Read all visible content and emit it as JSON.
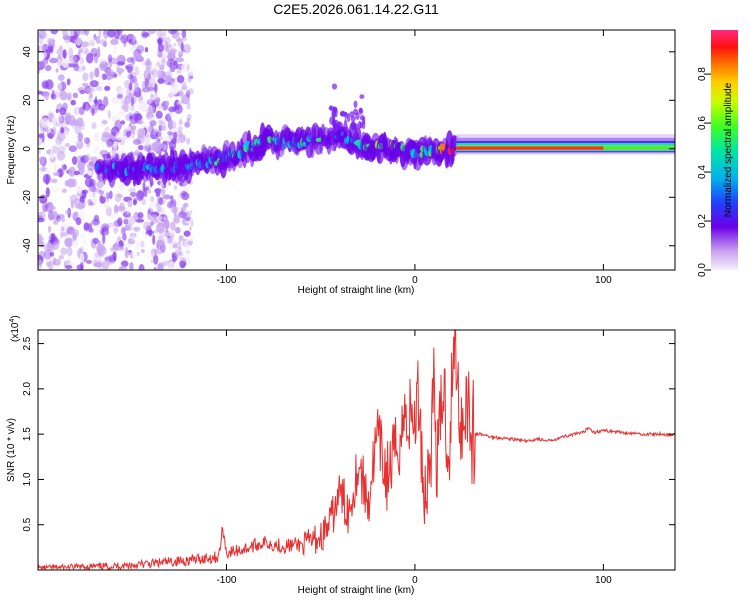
{
  "title": "C2E5.2026.061.14.22.G11",
  "colors": {
    "spectral_scale": [
      "#f4ecfa",
      "#c9a8f0",
      "#8a3ff0",
      "#6a00e8",
      "#3060ff",
      "#00c8e8",
      "#3ce870",
      "#9aff00",
      "#ffe000",
      "#ff8000",
      "#ff2000",
      "#ff1a6a"
    ],
    "snr_line": "#e83030"
  },
  "chart_data": [
    {
      "type": "heatmap",
      "name": "spectrogram",
      "title": "C2E5.2026.061.14.22.G11",
      "xlabel": "Height of straight line (km)",
      "ylabel": "Frequency (Hz)",
      "xlim": [
        -200,
        138
      ],
      "ylim": [
        -50,
        49
      ],
      "xticks": [
        -100,
        0,
        100
      ],
      "xtick_labels": [
        "-100",
        "0",
        "100"
      ],
      "yticks": [
        -40,
        -20,
        0,
        20,
        40
      ],
      "ytick_labels": [
        "-40",
        "-20",
        "0",
        "20",
        "40"
      ],
      "colorbar": {
        "label": "Normalized spectral amplitude",
        "range": [
          0.0,
          0.98
        ],
        "ticks": [
          0.0,
          0.2,
          0.4,
          0.6,
          0.8
        ],
        "tick_labels": [
          "0.0",
          "0.2",
          "0.4",
          "0.6",
          "0.8"
        ]
      },
      "ridge": {
        "x": [
          -168,
          -150,
          -130,
          -110,
          -95,
          -80,
          -60,
          -45,
          -38,
          -30,
          -20,
          -10,
          0,
          10,
          22,
          40,
          60,
          80,
          100,
          120,
          138
        ],
        "freq": [
          -9,
          -8,
          -8,
          -6,
          -2,
          3,
          3,
          4,
          5,
          2,
          1,
          0,
          -2,
          -1,
          0,
          0,
          0,
          0,
          0,
          0,
          0
        ],
        "amplitude": [
          0.35,
          0.35,
          0.3,
          0.35,
          0.45,
          0.5,
          0.4,
          0.45,
          0.4,
          0.45,
          0.5,
          0.45,
          0.5,
          0.5,
          0.95,
          0.97,
          0.97,
          0.9,
          0.88,
          0.5,
          0.45
        ]
      }
    },
    {
      "type": "line",
      "name": "snr",
      "xlabel": "Height of straight line (km)",
      "ylabel": "SNR (10 * v/v)",
      "yscale_label": "(x10",
      "yscale_exp": "4",
      "xlim": [
        -200,
        138
      ],
      "ylim": [
        0,
        2.65
      ],
      "xticks": [
        -100,
        0,
        100
      ],
      "xtick_labels": [
        "-100",
        "0",
        "100"
      ],
      "yticks": [
        0.5,
        1.0,
        1.5,
        2.0,
        2.5
      ],
      "ytick_labels": [
        "0.5",
        "1.0",
        "1.5",
        "2.0",
        "2.5"
      ],
      "series": [
        {
          "name": "SNR",
          "x": [
            -200,
            -180,
            -160,
            -140,
            -120,
            -104,
            -102,
            -100,
            -90,
            -80,
            -70,
            -60,
            -50,
            -45,
            -40,
            -35,
            -30,
            -25,
            -20,
            -15,
            -10,
            -5,
            0,
            2,
            5,
            8,
            10,
            12,
            15,
            18,
            20,
            22,
            23,
            25,
            27,
            30,
            32,
            35,
            40,
            50,
            60,
            65,
            70,
            80,
            90,
            92,
            95,
            100,
            110,
            120,
            130,
            138
          ],
          "values": [
            0.03,
            0.04,
            0.05,
            0.08,
            0.12,
            0.16,
            0.48,
            0.2,
            0.25,
            0.32,
            0.28,
            0.3,
            0.4,
            0.55,
            0.9,
            0.7,
            1.25,
            0.8,
            1.55,
            1.1,
            1.4,
            1.8,
            1.75,
            2.05,
            0.9,
            1.3,
            2.15,
            1.2,
            2.2,
            1.4,
            2.3,
            2.62,
            2.05,
            1.7,
            2.15,
            1.7,
            1.5,
            1.5,
            1.47,
            1.45,
            1.42,
            1.45,
            1.42,
            1.48,
            1.52,
            1.58,
            1.52,
            1.54,
            1.52,
            1.5,
            1.5,
            1.49
          ]
        }
      ]
    }
  ]
}
